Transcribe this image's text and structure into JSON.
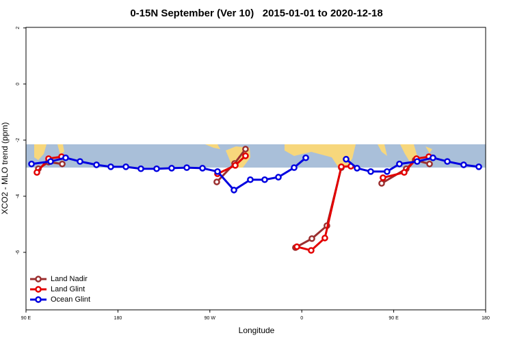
{
  "chart_data": {
    "type": "line",
    "title": "0-15N September (Ver 10)   2015-01-01 to 2020-12-18",
    "x_label": "Longitude",
    "y_label": "XCO2 - MLO trend (ppm)",
    "xlim": [
      90,
      540
    ],
    "ylim": [
      -8.05,
      2.02
    ],
    "xticks": [
      {
        "value": 90,
        "label": "90 E"
      },
      {
        "value": 180,
        "label": "180"
      },
      {
        "value": 270,
        "label": "90 W"
      },
      {
        "value": 360,
        "label": "0"
      },
      {
        "value": 450,
        "label": "90 E"
      },
      {
        "value": 540,
        "label": "180"
      }
    ],
    "yticks": [
      2,
      0,
      -2,
      -4,
      -6
    ],
    "legend": "bottom-left",
    "series": [
      {
        "name": "Land Nadir",
        "color": "#9b2f2f",
        "x": [
          102.1,
          112.1,
          125.5,
          null,
          276.8,
          294.2,
          304.9,
          null,
          353.8,
          369.9,
          384.6,
          398.7,
          null,
          438.2,
          462.3,
          471.0,
          485.1
        ],
        "values": [
          -3.02,
          -2.78,
          -2.85,
          null,
          -3.49,
          -2.83,
          -2.32,
          null,
          -5.83,
          -5.51,
          -5.05,
          -2.98,
          null,
          -3.54,
          -3.02,
          -2.71,
          -2.85
        ]
      },
      {
        "name": "Land Glint",
        "color": "#e30000",
        "x": [
          100.7,
          112.1,
          124.8,
          null,
          277.5,
          294.9,
          304.9,
          null,
          355.2,
          369.2,
          382.6,
          398.7,
          408.1,
          null,
          439.5,
          460.3,
          472.3,
          484.4
        ],
        "values": [
          -3.15,
          -2.66,
          -2.59,
          null,
          -3.2,
          -2.9,
          -2.56,
          null,
          -5.8,
          -5.93,
          -5.49,
          -2.95,
          -2.93,
          null,
          -3.34,
          -3.15,
          -2.66,
          -2.59
        ]
      },
      {
        "name": "Ocean Glint",
        "color": "#0000e0",
        "x": [
          95.4,
          114.1,
          128.8,
          142.9,
          159.0,
          173.0,
          187.8,
          202.5,
          217.9,
          232.6,
          247.4,
          262.8,
          277.5,
          293.6,
          309.6,
          323.7,
          337.1,
          352.5,
          363.9,
          null,
          403.4,
          414.1,
          427.5,
          443.5,
          455.6,
          473.0,
          488.4,
          502.5,
          518.5,
          533.3
        ],
        "values": [
          -2.85,
          -2.76,
          -2.63,
          -2.76,
          -2.88,
          -2.95,
          -2.95,
          -3.02,
          -3.02,
          -3.0,
          -2.98,
          -3.0,
          -3.12,
          -3.78,
          -3.41,
          -3.41,
          -3.32,
          -2.98,
          -2.63,
          null,
          -2.68,
          -3.0,
          -3.12,
          -3.12,
          -2.85,
          -2.76,
          -2.63,
          -2.76,
          -2.88,
          -2.95
        ]
      }
    ]
  }
}
